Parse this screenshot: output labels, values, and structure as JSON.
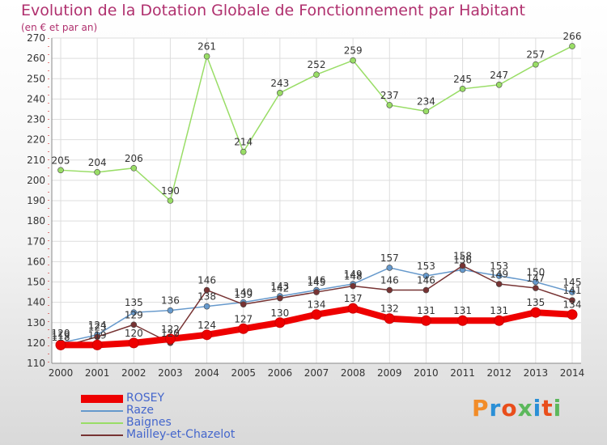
{
  "title": "Evolution de la Dotation Globale de Fonctionnement par Habitant",
  "subtitle": "(en € et par an)",
  "logo": {
    "text": "Proxiti",
    "colors": [
      "#f28c28",
      "#2a8fd6",
      "#e94e1b",
      "#5cb85c",
      "#2a8fd6",
      "#e94e1b",
      "#5cb85c"
    ]
  },
  "colors": {
    "title": "#b0306e",
    "legend_text": "#4466cc",
    "grid": "#dddddd",
    "axis_red": "#cc0000"
  },
  "chart_data": {
    "type": "line",
    "title": "Evolution de la Dotation Globale de Fonctionnement par Habitant",
    "subtitle": "(en € et par an)",
    "x": [
      "2000",
      "2001",
      "2002",
      "2003",
      "2004",
      "2005",
      "2006",
      "2007",
      "2008",
      "2009",
      "2010",
      "2011",
      "2012",
      "2013",
      "2014"
    ],
    "ylim": [
      110,
      270
    ],
    "yticks": [
      110,
      120,
      130,
      140,
      150,
      160,
      170,
      180,
      190,
      200,
      210,
      220,
      230,
      240,
      250,
      260,
      270
    ],
    "grid": true,
    "legend_position": "bottom-left",
    "series": [
      {
        "name": "ROSEY",
        "color": "#ee0000",
        "values": [
          119,
          119,
          120,
          122,
          124,
          127,
          130,
          134,
          137,
          132,
          131,
          131,
          131,
          135,
          134
        ]
      },
      {
        "name": "Raze",
        "color": "#6699cc",
        "values": [
          120,
          124,
          135,
          136,
          138,
          140,
          143,
          146,
          149,
          157,
          153,
          156,
          153,
          150,
          145
        ]
      },
      {
        "name": "Baignes",
        "color": "#99dd66",
        "values": [
          205,
          204,
          206,
          190,
          261,
          214,
          243,
          252,
          259,
          237,
          234,
          245,
          247,
          257,
          266
        ]
      },
      {
        "name": "Mailley-et-Chazelot",
        "color": "#773333",
        "values": [
          118,
          123,
          129,
          120,
          146,
          139,
          142,
          145,
          148,
          146,
          146,
          158,
          149,
          147,
          141
        ]
      }
    ]
  }
}
